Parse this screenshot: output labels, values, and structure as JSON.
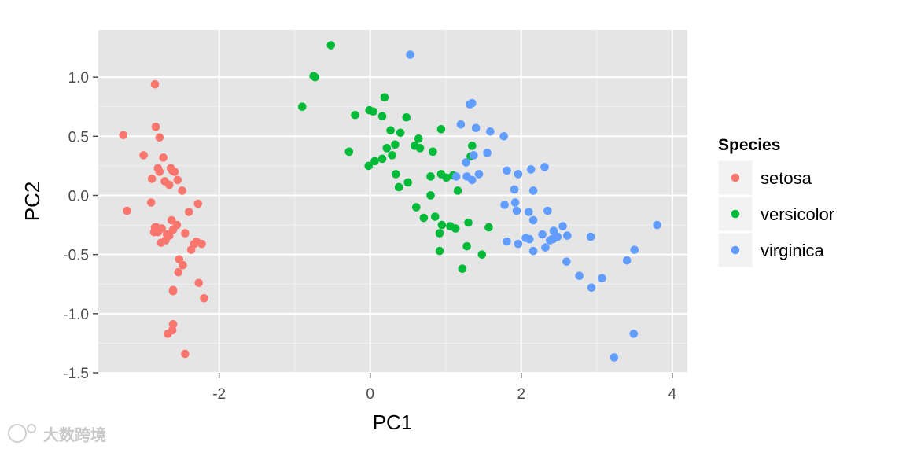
{
  "chart_data": {
    "type": "scatter",
    "xlabel": "PC1",
    "ylabel": "PC2",
    "xlim": [
      -3.6,
      4.2
    ],
    "ylim": [
      -1.5,
      1.4
    ],
    "xticks": [
      -2,
      0,
      2,
      4
    ],
    "xtick_labels": [
      "-2",
      "0",
      "2",
      "4"
    ],
    "yticks": [
      -1.5,
      -1.0,
      -0.5,
      0.0,
      0.5,
      1.0
    ],
    "ytick_labels": [
      "-1.5",
      "-1.0",
      "-0.5",
      "0.0",
      "0.5",
      "1.0"
    ],
    "grid": true,
    "legend": {
      "title": "Species",
      "position": "right"
    },
    "series": [
      {
        "name": "setosa",
        "color": "#F8766D",
        "x": [
          -2.85,
          -2.84,
          -2.79,
          -3.27,
          -3.22,
          -3.0,
          -2.74,
          -2.81,
          -2.79,
          -2.64,
          -2.62,
          -2.59,
          -2.89,
          -2.72,
          -2.55,
          -2.66,
          -2.49,
          -2.28,
          -2.9,
          -2.85,
          -2.76,
          -2.81,
          -2.69,
          -2.61,
          -2.63,
          -2.4,
          -2.23,
          -2.3,
          -2.56,
          -2.33,
          -2.45,
          -2.37,
          -2.86,
          -2.66,
          -2.71,
          -2.77,
          -2.83,
          -2.53,
          -2.54,
          -2.48,
          -2.61,
          -2.27,
          -2.2,
          -2.61,
          -2.61,
          -2.68,
          -2.62,
          -2.45
        ],
        "y": [
          0.94,
          0.58,
          0.49,
          0.51,
          -0.13,
          0.34,
          0.32,
          0.23,
          0.2,
          0.23,
          0.21,
          0.2,
          0.14,
          0.12,
          0.13,
          0.09,
          0.04,
          -0.07,
          -0.06,
          -0.27,
          -0.28,
          -0.31,
          -0.33,
          -0.29,
          -0.21,
          -0.14,
          -0.41,
          -0.39,
          -0.25,
          -0.41,
          -0.32,
          -0.46,
          -0.31,
          -0.34,
          -0.38,
          -0.4,
          -0.27,
          -0.54,
          -0.65,
          -0.59,
          -0.8,
          -0.74,
          -0.87,
          -0.81,
          -1.09,
          -1.17,
          -1.14,
          -1.34
        ]
      },
      {
        "name": "versicolor",
        "color": "#00BA38",
        "x": [
          -0.52,
          -0.73,
          -0.75,
          -0.9,
          -0.2,
          -0.28,
          -0.01,
          0.04,
          0.19,
          0.16,
          0.48,
          0.27,
          0.4,
          0.33,
          0.06,
          -0.02,
          0.16,
          0.22,
          0.29,
          0.34,
          0.38,
          0.64,
          0.59,
          0.66,
          0.83,
          0.94,
          1.35,
          1.33,
          1.1,
          0.8,
          0.94,
          1.01,
          1.16,
          0.8,
          0.61,
          0.71,
          0.95,
          1.13,
          1.06,
          0.86,
          1.3,
          1.57,
          1.28,
          1.48,
          1.22,
          0.92,
          0.92,
          0.5
        ],
        "y": [
          1.27,
          1.0,
          1.01,
          0.75,
          0.68,
          0.37,
          0.72,
          0.71,
          0.83,
          0.67,
          0.66,
          0.55,
          0.53,
          0.43,
          0.29,
          0.25,
          0.31,
          0.4,
          0.34,
          0.18,
          0.07,
          0.48,
          0.42,
          0.4,
          0.37,
          0.56,
          0.42,
          0.33,
          0.17,
          0.16,
          0.18,
          0.15,
          0.04,
          0.0,
          -0.1,
          -0.19,
          -0.25,
          -0.28,
          -0.26,
          -0.18,
          -0.23,
          -0.27,
          -0.43,
          -0.5,
          -0.62,
          -0.32,
          -0.47,
          0.11
        ]
      },
      {
        "name": "virginica",
        "color": "#619CFF",
        "x": [
          0.53,
          1.32,
          1.35,
          1.2,
          1.4,
          1.59,
          1.77,
          1.55,
          1.37,
          1.27,
          1.14,
          1.28,
          1.44,
          1.81,
          1.96,
          2.13,
          2.31,
          2.16,
          1.35,
          1.78,
          1.92,
          1.94,
          2.16,
          2.35,
          2.43,
          2.55,
          2.1,
          2.11,
          2.41,
          2.32,
          2.6,
          2.28,
          2.48,
          2.16,
          1.96,
          1.81,
          2.06,
          2.42,
          2.38,
          2.61,
          2.93,
          2.77,
          3.4,
          3.5,
          3.8,
          2.92,
          3.07,
          3.49,
          3.23,
          1.91
        ],
        "y": [
          1.19,
          0.77,
          0.78,
          0.6,
          0.57,
          0.54,
          0.5,
          0.36,
          0.34,
          0.28,
          0.16,
          0.16,
          0.18,
          0.21,
          0.18,
          0.22,
          0.24,
          0.04,
          0.13,
          -0.08,
          -0.06,
          -0.13,
          -0.21,
          -0.13,
          -0.3,
          -0.26,
          -0.14,
          -0.37,
          -0.37,
          -0.44,
          -0.56,
          -0.33,
          -0.35,
          -0.47,
          -0.41,
          -0.39,
          -0.36,
          -0.37,
          -0.38,
          -0.34,
          -0.78,
          -0.68,
          -0.55,
          -0.46,
          -0.25,
          -0.35,
          -0.7,
          -1.17,
          -1.37,
          0.05
        ]
      }
    ]
  },
  "watermark": {
    "text": "大数跨境"
  }
}
